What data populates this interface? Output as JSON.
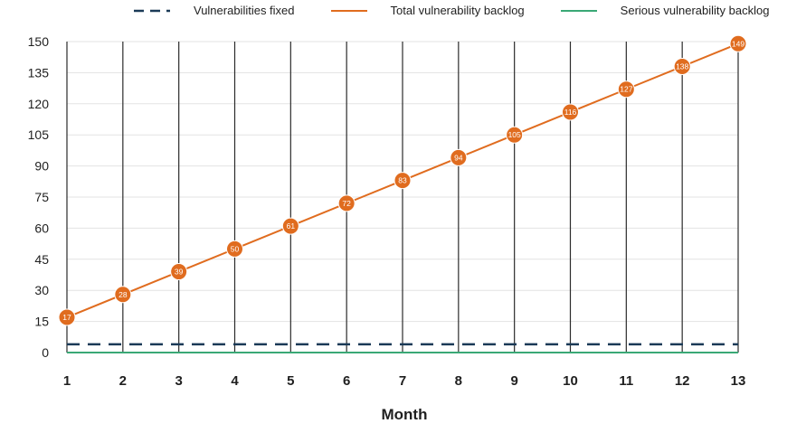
{
  "chart_data": {
    "type": "line",
    "title": "",
    "xlabel": "Month",
    "ylabel": "",
    "x": [
      1,
      2,
      3,
      4,
      5,
      6,
      7,
      8,
      9,
      10,
      11,
      12,
      13
    ],
    "ylim": [
      0,
      150
    ],
    "yticks": [
      0,
      15,
      30,
      45,
      60,
      75,
      90,
      105,
      120,
      135,
      150
    ],
    "grid": true,
    "legend_position": "top",
    "series": [
      {
        "name": "Vulnerabilities fixed",
        "style": "dashed",
        "color": "#1b3a57",
        "values": [
          4,
          4,
          4,
          4,
          4,
          4,
          4,
          4,
          4,
          4,
          4,
          4,
          4
        ]
      },
      {
        "name": "Total vulnerability backlog",
        "style": "solid",
        "color": "#e06c1f",
        "values": [
          17,
          28,
          39,
          50,
          61,
          72,
          83,
          94,
          105,
          116,
          127,
          138,
          149
        ],
        "data_labels": [
          "17",
          "28",
          "39",
          "50",
          "61",
          "72",
          "83",
          "94",
          "105",
          "116",
          "127",
          "138",
          "149"
        ]
      },
      {
        "name": "Serious vulnerability backlog",
        "style": "solid",
        "color": "#3aa876",
        "values": [
          0,
          0,
          0,
          0,
          0,
          0,
          0,
          0,
          0,
          0,
          0,
          0,
          0
        ]
      }
    ]
  }
}
